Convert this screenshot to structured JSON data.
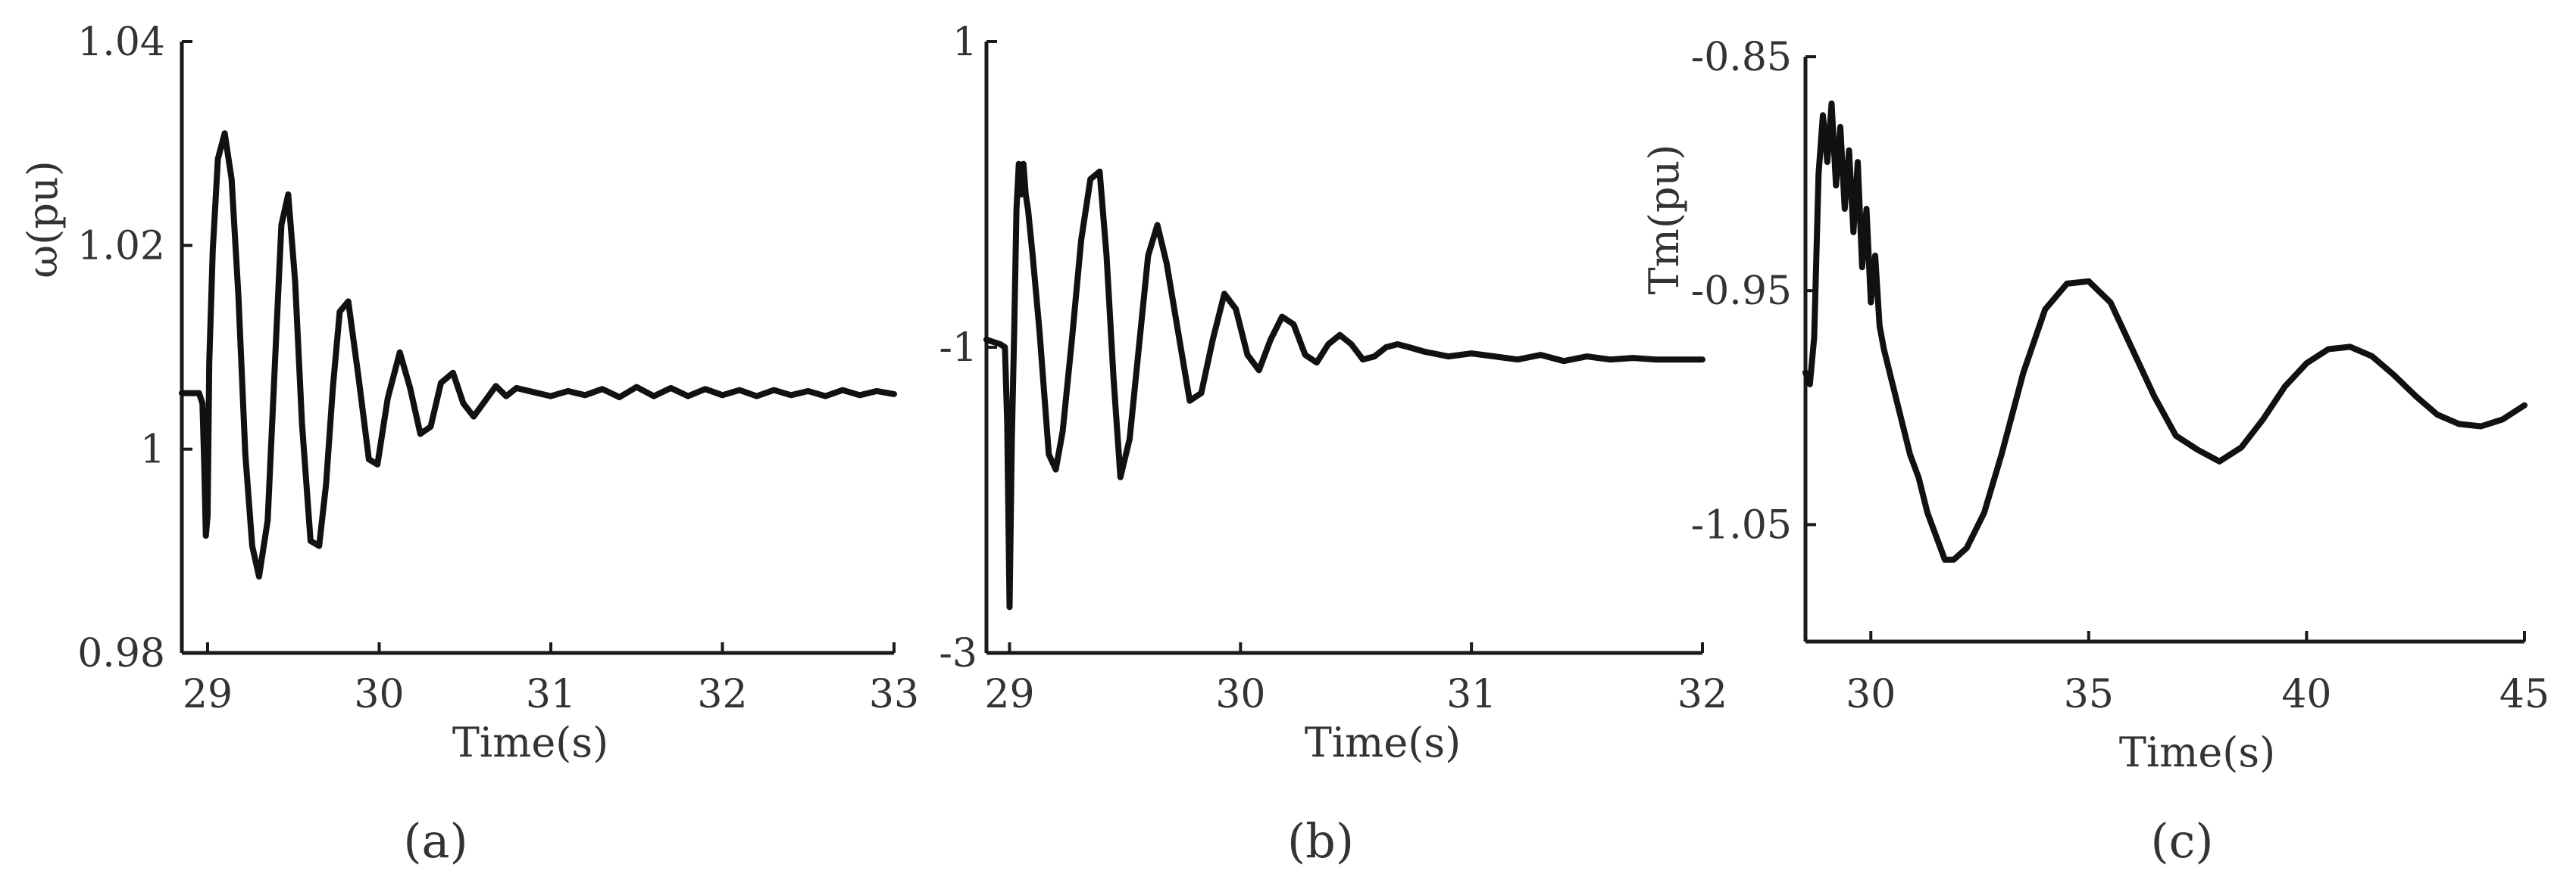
{
  "chart_data": [
    {
      "type": "line",
      "panel_label": "(a)",
      "xlabel": "Time(s)",
      "ylabel": "ω(pu)",
      "xlim": [
        28.85,
        33
      ],
      "ylim": [
        0.98,
        1.04
      ],
      "xticks": [
        29,
        30,
        31,
        32,
        33
      ],
      "yticks": [
        0.98,
        1,
        1.02,
        1.04
      ],
      "xtick_labels": [
        "29",
        "30",
        "31",
        "32",
        "33"
      ],
      "ytick_labels": [
        "0.98",
        "1",
        "1.02",
        "1.04"
      ],
      "grid": false,
      "series": [
        {
          "x": [
            28.85,
            28.95,
            28.97,
            28.98,
            28.99,
            29.0,
            29.01,
            29.03,
            29.06,
            29.1,
            29.14,
            29.18,
            29.22,
            29.26,
            29.3,
            29.35,
            29.39,
            29.43,
            29.47,
            29.51,
            29.55,
            29.6,
            29.65,
            29.69,
            29.73,
            29.77,
            29.82,
            29.88,
            29.94,
            29.99,
            30.05,
            30.12,
            30.18,
            30.24,
            30.3,
            30.36,
            30.43,
            30.49,
            30.55,
            30.62,
            30.68,
            30.74,
            30.8,
            30.9,
            31.0,
            31.1,
            31.2,
            31.3,
            31.4,
            31.5,
            31.6,
            31.7,
            31.8,
            31.9,
            32.0,
            32.1,
            32.2,
            32.3,
            32.4,
            32.5,
            32.6,
            32.7,
            32.8,
            32.9,
            33.0
          ],
          "y": [
            1.0055,
            1.0055,
            1.0045,
            0.999,
            0.9915,
            0.9935,
            1.0085,
            1.0195,
            1.0285,
            1.031,
            1.0265,
            1.015,
            0.9995,
            0.9905,
            0.9875,
            0.993,
            1.0075,
            1.022,
            1.025,
            1.0165,
            1.0025,
            0.991,
            0.9905,
            0.9965,
            1.006,
            1.0135,
            1.0145,
            1.007,
            0.999,
            0.9985,
            1.005,
            1.0095,
            1.006,
            1.0015,
            1.0022,
            1.0065,
            1.0075,
            1.0045,
            1.0032,
            1.0048,
            1.0062,
            1.0052,
            1.006,
            1.0056,
            1.0052,
            1.0057,
            1.0053,
            1.0059,
            1.0051,
            1.0061,
            1.0052,
            1.006,
            1.0052,
            1.0059,
            1.0053,
            1.0058,
            1.0052,
            1.0058,
            1.0053,
            1.0057,
            1.0052,
            1.0058,
            1.0053,
            1.0057,
            1.0054
          ]
        }
      ]
    },
    {
      "type": "line",
      "panel_label": "(b)",
      "xlabel": "Time(s)",
      "ylabel": "",
      "xlim": [
        28.9,
        32
      ],
      "ylim": [
        -3,
        1
      ],
      "xticks": [
        29,
        30,
        31,
        32
      ],
      "yticks": [
        -3,
        -1,
        1
      ],
      "xtick_labels": [
        "29",
        "30",
        "31",
        "32"
      ],
      "ytick_labels": [
        "-3",
        "-1",
        "1"
      ],
      "grid": false,
      "series": [
        {
          "x": [
            28.9,
            28.96,
            28.98,
            28.99,
            29.0,
            29.01,
            29.02,
            29.03,
            29.04,
            29.05,
            29.06,
            29.07,
            29.08,
            29.1,
            29.13,
            29.17,
            29.2,
            29.23,
            29.27,
            29.31,
            29.35,
            29.39,
            29.42,
            29.45,
            29.48,
            29.52,
            29.56,
            29.6,
            29.64,
            29.68,
            29.73,
            29.78,
            29.83,
            29.88,
            29.93,
            29.98,
            30.03,
            30.08,
            30.13,
            30.18,
            30.23,
            30.28,
            30.33,
            30.38,
            30.43,
            30.48,
            30.53,
            30.58,
            30.63,
            30.68,
            30.73,
            30.8,
            30.9,
            31.0,
            31.1,
            31.2,
            31.3,
            31.4,
            31.5,
            31.6,
            31.7,
            31.8,
            31.9,
            32.0
          ],
          "y": [
            -0.95,
            -0.98,
            -1.0,
            -1.5,
            -2.7,
            -1.6,
            -0.9,
            -0.1,
            0.2,
            0.0,
            0.2,
            0.0,
            -0.1,
            -0.4,
            -0.9,
            -1.7,
            -1.8,
            -1.55,
            -0.95,
            -0.3,
            0.1,
            0.15,
            -0.4,
            -1.2,
            -1.85,
            -1.6,
            -1.0,
            -0.4,
            -0.2,
            -0.45,
            -0.9,
            -1.35,
            -1.3,
            -0.95,
            -0.65,
            -0.75,
            -1.05,
            -1.15,
            -0.95,
            -0.8,
            -0.85,
            -1.05,
            -1.1,
            -0.98,
            -0.92,
            -0.98,
            -1.08,
            -1.06,
            -1.0,
            -0.98,
            -1.0,
            -1.03,
            -1.06,
            -1.04,
            -1.06,
            -1.08,
            -1.05,
            -1.09,
            -1.06,
            -1.08,
            -1.07,
            -1.08,
            -1.08,
            -1.08
          ]
        }
      ]
    },
    {
      "type": "line",
      "panel_label": "(c)",
      "xlabel": "Time(s)",
      "ylabel": "Tm(pu)",
      "xlim": [
        28.5,
        45
      ],
      "ylim": [
        -1.1,
        -0.85
      ],
      "xticks": [
        30,
        35,
        40,
        45
      ],
      "yticks": [
        -1.05,
        -0.95,
        -0.85
      ],
      "xtick_labels": [
        "30",
        "35",
        "40",
        "45"
      ],
      "ytick_labels": [
        "-1.05",
        "-0.95",
        "-0.85"
      ],
      "grid": false,
      "series": [
        {
          "x": [
            28.5,
            28.6,
            28.7,
            28.8,
            28.9,
            29.0,
            29.1,
            29.2,
            29.3,
            29.4,
            29.5,
            29.6,
            29.7,
            29.8,
            29.9,
            30.0,
            30.1,
            30.2,
            30.3,
            30.5,
            30.7,
            30.9,
            31.1,
            31.3,
            31.5,
            31.7,
            31.9,
            32.2,
            32.6,
            33.0,
            33.5,
            34.0,
            34.5,
            35.0,
            35.5,
            36.0,
            36.5,
            37.0,
            37.5,
            38.0,
            38.5,
            39.0,
            39.5,
            40.0,
            40.5,
            41.0,
            41.5,
            42.0,
            42.5,
            43.0,
            43.5,
            44.0,
            44.5,
            45.0
          ],
          "y": [
            -0.985,
            -0.99,
            -0.97,
            -0.9,
            -0.875,
            -0.895,
            -0.87,
            -0.905,
            -0.88,
            -0.915,
            -0.89,
            -0.925,
            -0.895,
            -0.94,
            -0.915,
            -0.955,
            -0.935,
            -0.965,
            -0.975,
            -0.99,
            -1.005,
            -1.02,
            -1.03,
            -1.045,
            -1.055,
            -1.065,
            -1.065,
            -1.06,
            -1.045,
            -1.02,
            -0.985,
            -0.958,
            -0.947,
            -0.946,
            -0.955,
            -0.975,
            -0.995,
            -1.012,
            -1.018,
            -1.023,
            -1.017,
            -1.005,
            -0.991,
            -0.981,
            -0.975,
            -0.974,
            -0.978,
            -0.986,
            -0.995,
            -1.003,
            -1.007,
            -1.008,
            -1.005,
            -0.999
          ]
        }
      ]
    }
  ]
}
